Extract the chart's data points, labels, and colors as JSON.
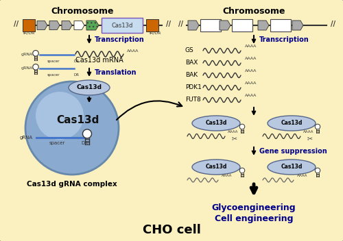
{
  "bg_color": "#FAF0C0",
  "border_color": "#888888",
  "title": "CHO cell",
  "title_fontsize": 13,
  "title_color": "#000000",
  "left_chrom_title": "Chromosome",
  "right_chrom_title": "Chromosome",
  "blue_color": "#00008B",
  "transcription_label": "Transcription",
  "translation_label": "Translation",
  "mrna_label": "Cas13d mRNA",
  "cas13d_label": "Cas13d",
  "gene_suppression_label": "Gene suppression",
  "final_text1": "Glycoengineering",
  "final_text2": "Cell engineering",
  "complex_label": "Cas13d gRNA complex",
  "gene_labels": [
    "GS",
    "BAX",
    "BAK",
    "PDK1",
    "FUT8"
  ],
  "orange_color": "#CC6600",
  "gray_color": "#999999",
  "light_gray": "#CCCCCC",
  "green_color": "#228B22",
  "purple_color": "#9966BB",
  "light_blue_fill": "#B0C4DE",
  "ellipse_fill": "#B8C8E0",
  "ellipse_edge": "#556688",
  "dark_blue_fill": "#7090BB"
}
